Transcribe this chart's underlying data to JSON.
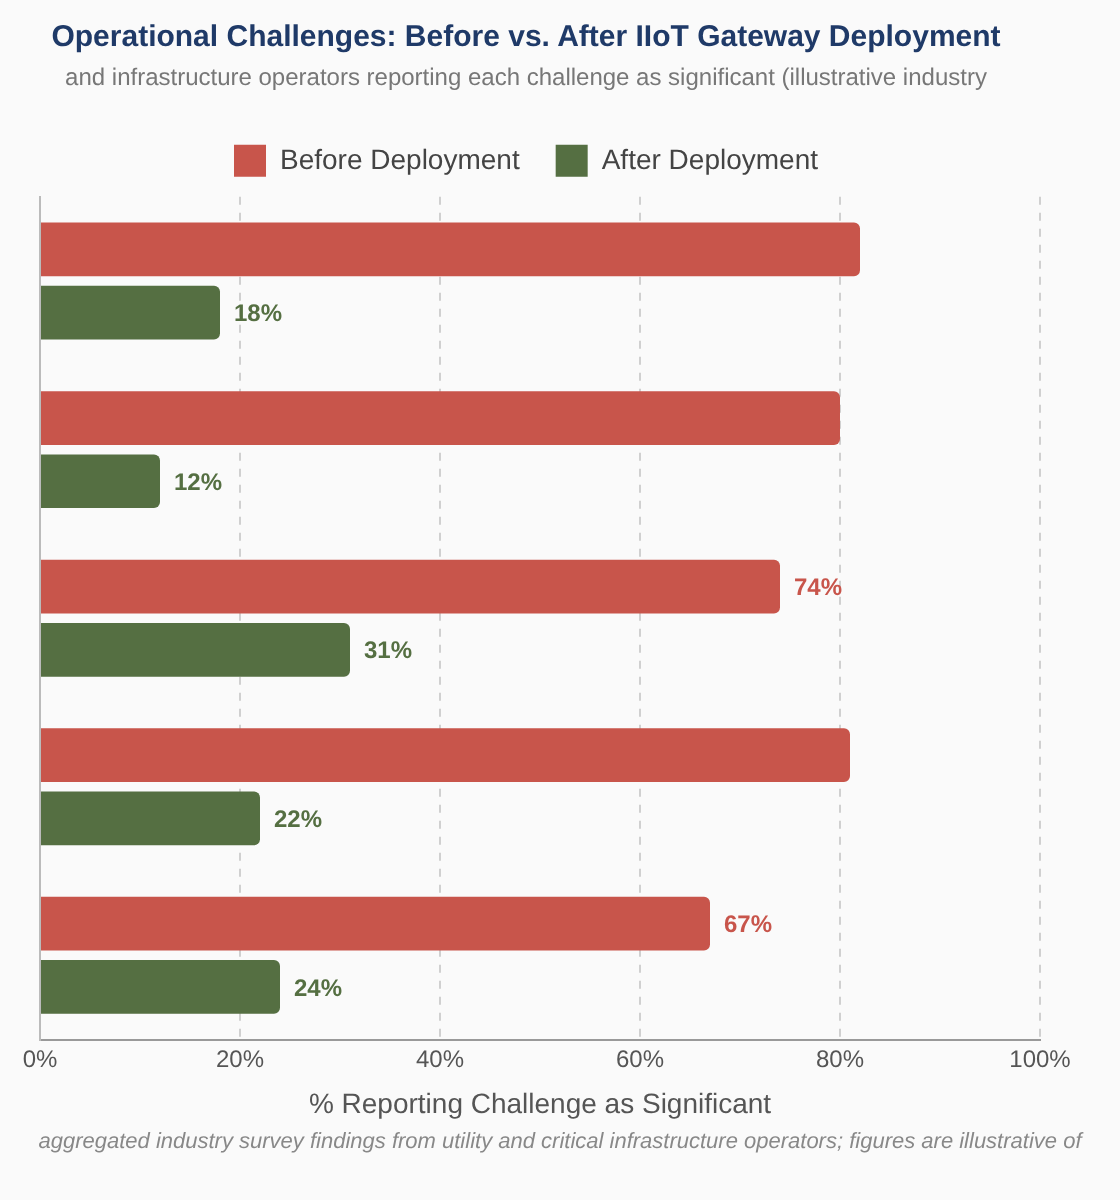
{
  "chart_data": {
    "type": "bar",
    "orientation": "horizontal",
    "title": "Operational Challenges: Before vs. After IIoT Gateway Deployment",
    "subtitle": "and infrastructure operators reporting each challenge as significant (illustrative industry",
    "xlabel": "% Reporting Challenge as Significant",
    "annotations": [
      "aggregated industry survey findings from utility and critical infrastructure operators; figures are illustrative of"
    ],
    "categories": [
      null,
      null,
      null,
      null,
      null
    ],
    "series": [
      {
        "name": "Before Deployment",
        "color": "#c8554b",
        "values": [
          82,
          80,
          74,
          81,
          67
        ],
        "value_labels": [
          null,
          null,
          "74%",
          null,
          "67%"
        ]
      },
      {
        "name": "After Deployment",
        "color": "#556f42",
        "values": [
          18,
          12,
          31,
          22,
          24
        ],
        "value_labels": [
          "18%",
          "12%",
          "31%",
          "22%",
          "24%"
        ]
      }
    ],
    "xlim": [
      0,
      100
    ],
    "xticks": [
      {
        "value": 0,
        "label": "0%"
      },
      {
        "value": 20,
        "label": "20%"
      },
      {
        "value": 40,
        "label": "40%"
      },
      {
        "value": 60,
        "label": "60%"
      },
      {
        "value": 80,
        "label": "80%"
      },
      {
        "value": 100,
        "label": "100%"
      }
    ],
    "grid": "x",
    "legend": "top"
  }
}
